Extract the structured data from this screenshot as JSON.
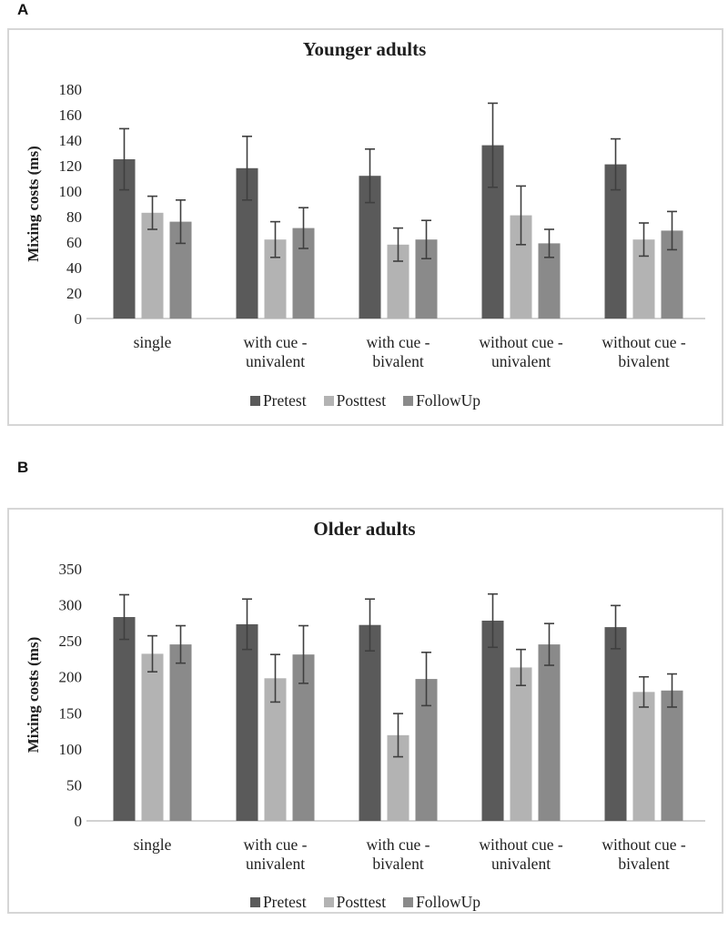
{
  "figure": {
    "panel_a_letter": "A",
    "panel_b_letter": "B"
  },
  "colors": {
    "pretest": "#5a5a5a",
    "posttest": "#b3b3b3",
    "followup": "#8a8a8a",
    "error_bar": "#3f3f3f",
    "panel_border": "#d6d6d6",
    "baseline": "#d2d2d2",
    "text": "#1f1f1f"
  },
  "chart_data": [
    {
      "type": "bar",
      "panel_label": "A",
      "title": "Younger adults",
      "ylabel": "Mixing costs (ms)",
      "xlabel": "",
      "ylim": [
        0,
        180
      ],
      "ytick_step": 20,
      "grid": false,
      "legend_position": "bottom",
      "categories": [
        "single",
        "with cue - univalent",
        "with cue - bivalent",
        "without cue - univalent",
        "without cue - bivalent"
      ],
      "series": [
        {
          "name": "Pretest",
          "color": "#5a5a5a",
          "values": [
            125,
            118,
            112,
            136,
            121
          ],
          "errors": [
            24,
            25,
            21,
            33,
            20
          ]
        },
        {
          "name": "Posttest",
          "color": "#b3b3b3",
          "values": [
            83,
            62,
            58,
            81,
            62
          ],
          "errors": [
            13,
            14,
            13,
            23,
            13
          ]
        },
        {
          "name": "FollowUp",
          "color": "#8a8a8a",
          "values": [
            76,
            71,
            62,
            59,
            69
          ],
          "errors": [
            17,
            16,
            15,
            11,
            15
          ]
        }
      ]
    },
    {
      "type": "bar",
      "panel_label": "B",
      "title": "Older adults",
      "ylabel": "Mixing costs (ms)",
      "xlabel": "",
      "ylim": [
        0,
        350
      ],
      "ytick_step": 50,
      "grid": false,
      "legend_position": "bottom",
      "categories": [
        "single",
        "with cue - univalent",
        "with cue - bivalent",
        "without cue - univalent",
        "without cue - bivalent"
      ],
      "series": [
        {
          "name": "Pretest",
          "color": "#5a5a5a",
          "values": [
            283,
            273,
            272,
            278,
            269
          ],
          "errors": [
            31,
            35,
            36,
            37,
            30
          ]
        },
        {
          "name": "Posttest",
          "color": "#b3b3b3",
          "values": [
            232,
            198,
            119,
            213,
            179
          ],
          "errors": [
            25,
            33,
            30,
            25,
            21
          ]
        },
        {
          "name": "FollowUp",
          "color": "#8a8a8a",
          "values": [
            245,
            231,
            197,
            245,
            181
          ],
          "errors": [
            26,
            40,
            37,
            29,
            23
          ]
        }
      ]
    }
  ]
}
